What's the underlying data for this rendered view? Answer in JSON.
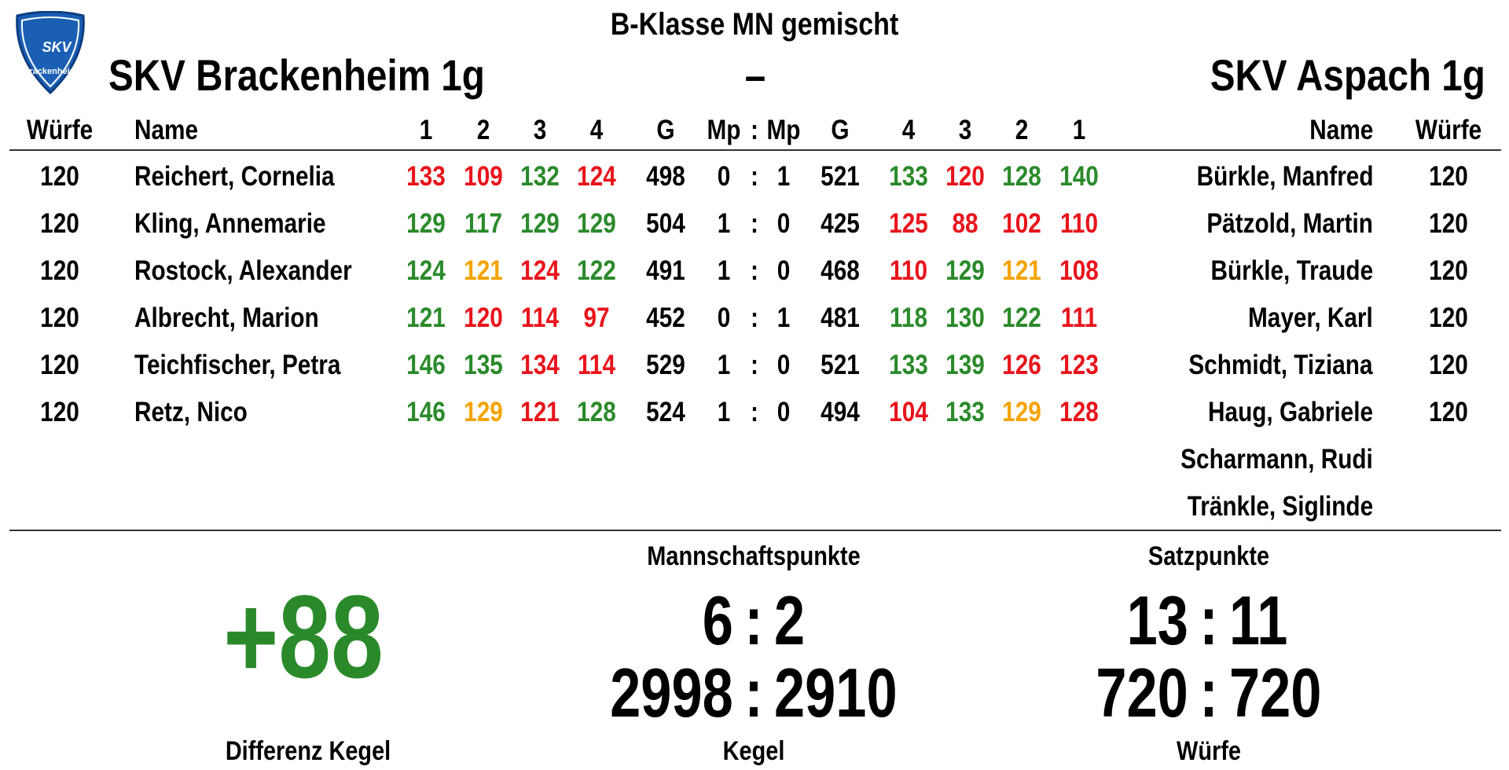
{
  "header": {
    "league": "B-Klasse MN gemischt",
    "home_team": "SKV Brackenheim 1g",
    "separator": "–",
    "away_team": "SKV Aspach 1g"
  },
  "logo": {
    "name": "SKV",
    "city": "Brackenheim"
  },
  "columns": {
    "home": [
      "Würfe",
      "Name",
      "1",
      "2",
      "3",
      "4",
      "G",
      "Mp"
    ],
    "colon": ":",
    "away": [
      "Mp",
      "G",
      "4",
      "3",
      "2",
      "1",
      "Name",
      "Würfe"
    ]
  },
  "colors": {
    "green": "#2a8a2a",
    "red": "#e8141b",
    "orange": "#f5a300"
  },
  "rows": [
    {
      "home_throws": 120,
      "home_name": "Reichert, Cornelia",
      "home_sets": [
        133,
        109,
        132,
        124
      ],
      "home_colors": [
        "red",
        "red",
        "green",
        "red"
      ],
      "home_total": 498,
      "home_mp": 0,
      "away_mp": 1,
      "away_total": 521,
      "away_sets": [
        133,
        120,
        128,
        140
      ],
      "away_colors": [
        "green",
        "red",
        "green",
        "green"
      ],
      "away_name": "Bürkle, Manfred",
      "away_throws": 120
    },
    {
      "home_throws": 120,
      "home_name": "Kling, Annemarie",
      "home_sets": [
        129,
        117,
        129,
        129
      ],
      "home_colors": [
        "green",
        "green",
        "green",
        "green"
      ],
      "home_total": 504,
      "home_mp": 1,
      "away_mp": 0,
      "away_total": 425,
      "away_sets": [
        125,
        88,
        102,
        110
      ],
      "away_colors": [
        "red",
        "red",
        "red",
        "red"
      ],
      "away_name": "Pätzold, Martin",
      "away_throws": 120
    },
    {
      "home_throws": 120,
      "home_name": "Rostock, Alexander",
      "home_sets": [
        124,
        121,
        124,
        122
      ],
      "home_colors": [
        "green",
        "orange",
        "red",
        "green"
      ],
      "home_total": 491,
      "home_mp": 1,
      "away_mp": 0,
      "away_total": 468,
      "away_sets": [
        110,
        129,
        121,
        108
      ],
      "away_colors": [
        "red",
        "green",
        "orange",
        "red"
      ],
      "away_name": "Bürkle, Traude",
      "away_throws": 120
    },
    {
      "home_throws": 120,
      "home_name": "Albrecht, Marion",
      "home_sets": [
        121,
        120,
        114,
        97
      ],
      "home_colors": [
        "green",
        "red",
        "red",
        "red"
      ],
      "home_total": 452,
      "home_mp": 0,
      "away_mp": 1,
      "away_total": 481,
      "away_sets": [
        118,
        130,
        122,
        111
      ],
      "away_colors": [
        "green",
        "green",
        "green",
        "red"
      ],
      "away_name": "Mayer, Karl",
      "away_throws": 120
    },
    {
      "home_throws": 120,
      "home_name": "Teichfischer, Petra",
      "home_sets": [
        146,
        135,
        134,
        114
      ],
      "home_colors": [
        "green",
        "green",
        "red",
        "red"
      ],
      "home_total": 529,
      "home_mp": 1,
      "away_mp": 0,
      "away_total": 521,
      "away_sets": [
        133,
        139,
        126,
        123
      ],
      "away_colors": [
        "green",
        "green",
        "red",
        "red"
      ],
      "away_name": "Schmidt, Tiziana",
      "away_throws": 120
    },
    {
      "home_throws": 120,
      "home_name": "Retz, Nico",
      "home_sets": [
        146,
        129,
        121,
        128
      ],
      "home_colors": [
        "green",
        "orange",
        "red",
        "green"
      ],
      "home_total": 524,
      "home_mp": 1,
      "away_mp": 0,
      "away_total": 494,
      "away_sets": [
        104,
        133,
        129,
        128
      ],
      "away_colors": [
        "red",
        "green",
        "orange",
        "red"
      ],
      "away_name": "Haug, Gabriele",
      "away_throws": 120
    }
  ],
  "reserves": [
    "Scharmann, Rudi",
    "Tränkle, Siglinde"
  ],
  "summary": {
    "difference": "+88",
    "difference_label": "Differenz Kegel",
    "difference_color": "green",
    "team_points": {
      "label": "Mannschaftspunkte",
      "home": 6,
      "away": 2
    },
    "pins": {
      "label": "Kegel",
      "home": 2998,
      "away": 2910
    },
    "set_points": {
      "label": "Satzpunkte",
      "home": 13,
      "away": 11
    },
    "throws": {
      "label": "Würfe",
      "home": 720,
      "away": 720
    }
  }
}
